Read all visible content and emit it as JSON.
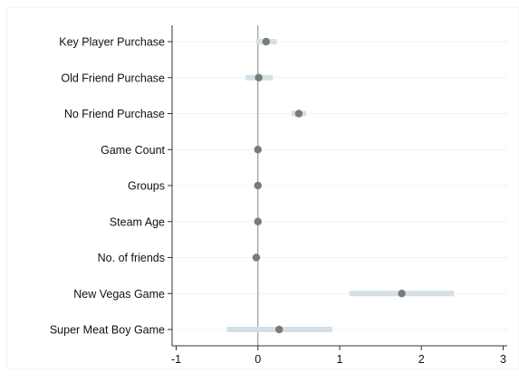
{
  "chart_data": {
    "type": "scatter",
    "subtype": "coefficient-plot",
    "title": "",
    "xlabel": "",
    "ylabel": "",
    "xlim": [
      -1.05,
      3.05
    ],
    "x_ticks": [
      -1,
      0,
      1,
      2,
      3
    ],
    "x_tick_labels": [
      "-1",
      "0",
      "1",
      "2",
      "3"
    ],
    "reference_line": 0,
    "grid": "horizontal",
    "categories": [
      "Key Player Purchase",
      "Old Friend Purchase",
      "No Friend Purchase",
      "Game Count",
      "Groups",
      "Steam Age",
      "No. of friends",
      "New Vegas Game",
      "Super Meat Boy Game"
    ],
    "series": [
      {
        "estimates": [
          0.1,
          0.01,
          0.5,
          0.0,
          0.0,
          0.0,
          -0.02,
          1.76,
          0.26
        ],
        "ci_low": [
          -0.02,
          -0.15,
          0.41,
          -0.01,
          -0.01,
          -0.01,
          -0.04,
          1.12,
          -0.38
        ],
        "ci_high": [
          0.23,
          0.18,
          0.59,
          0.01,
          0.01,
          0.01,
          0.0,
          2.4,
          0.91
        ]
      }
    ],
    "colors": {
      "marker": "#7a7a7a",
      "ci_bar": "#d5dfe6",
      "grid": "#eef2f5",
      "reference_line": "#888888",
      "axis": "#333333"
    }
  }
}
